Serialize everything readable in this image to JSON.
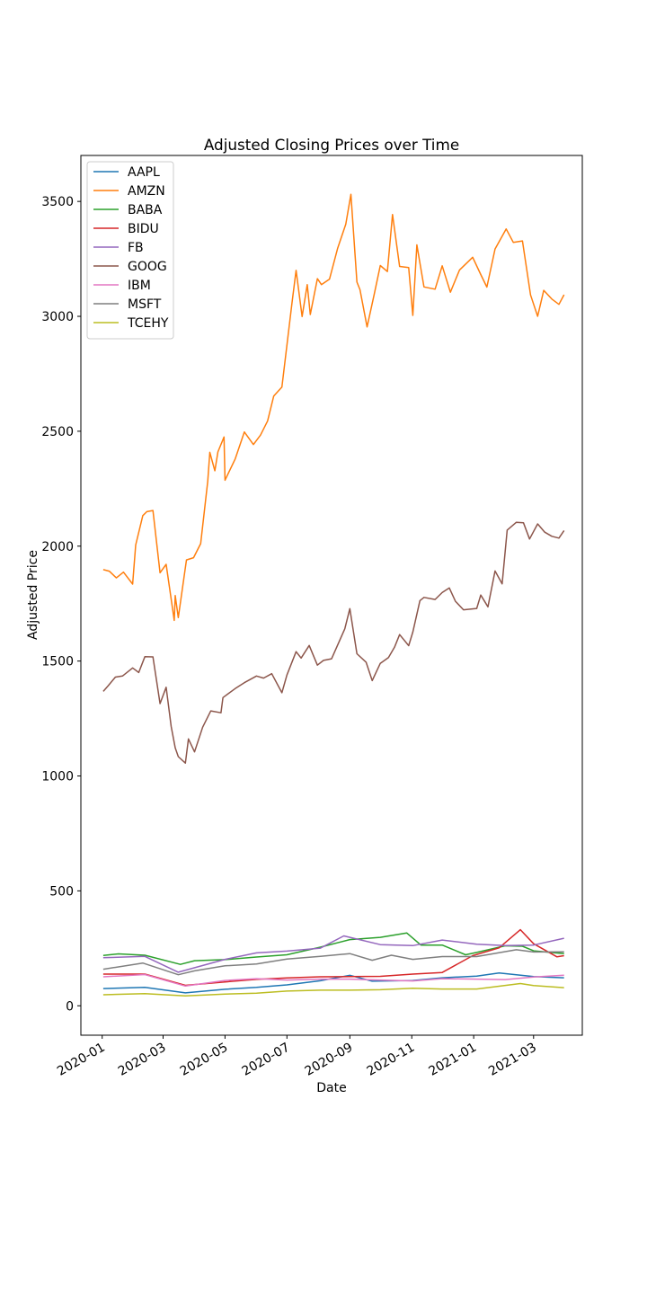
{
  "chart_data": {
    "type": "line",
    "title": "Adjusted Closing Prices over Time",
    "xlabel": "Date",
    "ylabel": "Adjusted Price",
    "x_ticks": [
      "2020-01",
      "2020-03",
      "2020-05",
      "2020-07",
      "2020-09",
      "2020-11",
      "2021-01",
      "2021-03"
    ],
    "y_ticks": [
      0,
      500,
      1000,
      1500,
      2000,
      2500,
      3000,
      3500
    ],
    "xlim": [
      "2019-12-11",
      "2021-04-18"
    ],
    "ylim": [
      -128,
      3700
    ],
    "grid": false,
    "legend_position": "top-left",
    "series": [
      {
        "name": "AAPL",
        "color": "#1f77b4",
        "points": [
          [
            "2020-01-02",
            75
          ],
          [
            "2020-02-12",
            80
          ],
          [
            "2020-03-23",
            56
          ],
          [
            "2020-05-01",
            72
          ],
          [
            "2020-06-01",
            80
          ],
          [
            "2020-07-01",
            91
          ],
          [
            "2020-08-03",
            109
          ],
          [
            "2020-09-01",
            133
          ],
          [
            "2020-09-23",
            107
          ],
          [
            "2020-11-02",
            110
          ],
          [
            "2020-12-01",
            122
          ],
          [
            "2021-01-04",
            129
          ],
          [
            "2021-01-26",
            143
          ],
          [
            "2021-03-01",
            127
          ],
          [
            "2021-03-31",
            122
          ]
        ]
      },
      {
        "name": "AMZN",
        "color": "#ff7f0e",
        "points": [
          [
            "2020-01-02",
            1898
          ],
          [
            "2020-01-08",
            1891
          ],
          [
            "2020-01-15",
            1862
          ],
          [
            "2020-01-22",
            1887
          ],
          [
            "2020-01-31",
            1835
          ],
          [
            "2020-02-03",
            2005
          ],
          [
            "2020-02-10",
            2133
          ],
          [
            "2020-02-14",
            2150
          ],
          [
            "2020-02-20",
            2155
          ],
          [
            "2020-02-27",
            1884
          ],
          [
            "2020-03-04",
            1921
          ],
          [
            "2020-03-12",
            1677
          ],
          [
            "2020-03-13",
            1785
          ],
          [
            "2020-03-16",
            1689
          ],
          [
            "2020-03-24",
            1940
          ],
          [
            "2020-03-31",
            1950
          ],
          [
            "2020-04-07",
            2011
          ],
          [
            "2020-04-14",
            2283
          ],
          [
            "2020-04-16",
            2408
          ],
          [
            "2020-04-21",
            2328
          ],
          [
            "2020-04-24",
            2410
          ],
          [
            "2020-04-30",
            2475
          ],
          [
            "2020-05-01",
            2287
          ],
          [
            "2020-05-11",
            2379
          ],
          [
            "2020-05-20",
            2497
          ],
          [
            "2020-05-29",
            2442
          ],
          [
            "2020-06-05",
            2483
          ],
          [
            "2020-06-12",
            2545
          ],
          [
            "2020-06-18",
            2653
          ],
          [
            "2020-06-26",
            2692
          ],
          [
            "2020-07-06",
            3057
          ],
          [
            "2020-07-10",
            3200
          ],
          [
            "2020-07-16",
            2999
          ],
          [
            "2020-07-21",
            3138
          ],
          [
            "2020-07-24",
            3008
          ],
          [
            "2020-07-31",
            3164
          ],
          [
            "2020-08-04",
            3138
          ],
          [
            "2020-08-12",
            3162
          ],
          [
            "2020-08-20",
            3297
          ],
          [
            "2020-08-28",
            3401
          ],
          [
            "2020-09-02",
            3531
          ],
          [
            "2020-09-08",
            3149
          ],
          [
            "2020-09-11",
            3116
          ],
          [
            "2020-09-18",
            2954
          ],
          [
            "2020-09-25",
            3095
          ],
          [
            "2020-10-01",
            3221
          ],
          [
            "2020-10-08",
            3195
          ],
          [
            "2020-10-13",
            3443
          ],
          [
            "2020-10-20",
            3217
          ],
          [
            "2020-10-29",
            3212
          ],
          [
            "2020-11-02",
            3004
          ],
          [
            "2020-11-06",
            3311
          ],
          [
            "2020-11-13",
            3128
          ],
          [
            "2020-11-24",
            3118
          ],
          [
            "2020-12-01",
            3220
          ],
          [
            "2020-12-09",
            3105
          ],
          [
            "2020-12-18",
            3201
          ],
          [
            "2020-12-31",
            3257
          ],
          [
            "2021-01-08",
            3182
          ],
          [
            "2021-01-14",
            3127
          ],
          [
            "2021-01-22",
            3293
          ],
          [
            "2021-02-02",
            3380
          ],
          [
            "2021-02-09",
            3322
          ],
          [
            "2021-02-18",
            3328
          ],
          [
            "2021-02-26",
            3093
          ],
          [
            "2021-03-05",
            3000
          ],
          [
            "2021-03-11",
            3113
          ],
          [
            "2021-03-19",
            3075
          ],
          [
            "2021-03-26",
            3052
          ],
          [
            "2021-03-31",
            3094
          ]
        ]
      },
      {
        "name": "BABA",
        "color": "#2ca02c",
        "points": [
          [
            "2020-01-02",
            219
          ],
          [
            "2020-01-17",
            226
          ],
          [
            "2020-02-12",
            220
          ],
          [
            "2020-03-18",
            180
          ],
          [
            "2020-04-01",
            196
          ],
          [
            "2020-05-01",
            201
          ],
          [
            "2020-06-01",
            212
          ],
          [
            "2020-07-01",
            222
          ],
          [
            "2020-08-03",
            255
          ],
          [
            "2020-09-01",
            288
          ],
          [
            "2020-10-01",
            298
          ],
          [
            "2020-10-27",
            317
          ],
          [
            "2020-11-10",
            264
          ],
          [
            "2020-12-01",
            264
          ],
          [
            "2020-12-24",
            222
          ],
          [
            "2021-01-04",
            232
          ],
          [
            "2021-02-01",
            261
          ],
          [
            "2021-02-18",
            259
          ],
          [
            "2021-03-01",
            239
          ],
          [
            "2021-03-31",
            227
          ]
        ]
      },
      {
        "name": "BIDU",
        "color": "#d62728",
        "points": [
          [
            "2020-01-02",
            138
          ],
          [
            "2020-02-12",
            138
          ],
          [
            "2020-03-23",
            89
          ],
          [
            "2020-05-01",
            104
          ],
          [
            "2020-06-01",
            115
          ],
          [
            "2020-07-01",
            121
          ],
          [
            "2020-08-03",
            126
          ],
          [
            "2020-09-01",
            127
          ],
          [
            "2020-10-01",
            128
          ],
          [
            "2020-11-02",
            138
          ],
          [
            "2020-12-01",
            145
          ],
          [
            "2020-12-31",
            218
          ],
          [
            "2021-01-26",
            252
          ],
          [
            "2021-02-16",
            331
          ],
          [
            "2021-03-01",
            270
          ],
          [
            "2021-03-24",
            213
          ],
          [
            "2021-03-31",
            218
          ]
        ]
      },
      {
        "name": "FB",
        "color": "#9467bd",
        "points": [
          [
            "2020-01-02",
            209
          ],
          [
            "2020-02-12",
            215
          ],
          [
            "2020-03-16",
            146
          ],
          [
            "2020-05-01",
            202
          ],
          [
            "2020-06-01",
            230
          ],
          [
            "2020-07-01",
            238
          ],
          [
            "2020-08-03",
            251
          ],
          [
            "2020-08-26",
            304
          ],
          [
            "2020-10-01",
            266
          ],
          [
            "2020-11-02",
            262
          ],
          [
            "2020-12-01",
            286
          ],
          [
            "2021-01-04",
            268
          ],
          [
            "2021-02-01",
            262
          ],
          [
            "2021-03-01",
            264
          ],
          [
            "2021-03-31",
            294
          ]
        ]
      },
      {
        "name": "GOOG",
        "color": "#8c564b",
        "points": [
          [
            "2020-01-02",
            1368
          ],
          [
            "2020-01-07",
            1393
          ],
          [
            "2020-01-14",
            1430
          ],
          [
            "2020-01-21",
            1435
          ],
          [
            "2020-01-31",
            1470
          ],
          [
            "2020-02-06",
            1450
          ],
          [
            "2020-02-12",
            1519
          ],
          [
            "2020-02-20",
            1518
          ],
          [
            "2020-02-27",
            1315
          ],
          [
            "2020-03-04",
            1386
          ],
          [
            "2020-03-09",
            1215
          ],
          [
            "2020-03-13",
            1122
          ],
          [
            "2020-03-16",
            1084
          ],
          [
            "2020-03-23",
            1056
          ],
          [
            "2020-03-26",
            1161
          ],
          [
            "2020-04-01",
            1105
          ],
          [
            "2020-04-09",
            1212
          ],
          [
            "2020-04-17",
            1283
          ],
          [
            "2020-04-27",
            1275
          ],
          [
            "2020-04-29",
            1341
          ],
          [
            "2020-05-11",
            1380
          ],
          [
            "2020-05-20",
            1406
          ],
          [
            "2020-06-01",
            1435
          ],
          [
            "2020-06-08",
            1426
          ],
          [
            "2020-06-16",
            1445
          ],
          [
            "2020-06-26",
            1362
          ],
          [
            "2020-07-01",
            1439
          ],
          [
            "2020-07-10",
            1541
          ],
          [
            "2020-07-15",
            1513
          ],
          [
            "2020-07-23",
            1568
          ],
          [
            "2020-07-31",
            1482
          ],
          [
            "2020-08-06",
            1503
          ],
          [
            "2020-08-14",
            1510
          ],
          [
            "2020-08-21",
            1580
          ],
          [
            "2020-08-27",
            1640
          ],
          [
            "2020-09-01",
            1728
          ],
          [
            "2020-09-08",
            1532
          ],
          [
            "2020-09-17",
            1495
          ],
          [
            "2020-09-23",
            1415
          ],
          [
            "2020-10-01",
            1490
          ],
          [
            "2020-10-09",
            1515
          ],
          [
            "2020-10-15",
            1560
          ],
          [
            "2020-10-20",
            1615
          ],
          [
            "2020-10-29",
            1567
          ],
          [
            "2020-11-02",
            1626
          ],
          [
            "2020-11-09",
            1763
          ],
          [
            "2020-11-13",
            1777
          ],
          [
            "2020-11-24",
            1768
          ],
          [
            "2020-12-01",
            1798
          ],
          [
            "2020-12-08",
            1818
          ],
          [
            "2020-12-14",
            1760
          ],
          [
            "2020-12-22",
            1723
          ],
          [
            "2021-01-04",
            1729
          ],
          [
            "2021-01-08",
            1787
          ],
          [
            "2021-01-15",
            1736
          ],
          [
            "2021-01-22",
            1892
          ],
          [
            "2021-01-29",
            1836
          ],
          [
            "2021-02-03",
            2070
          ],
          [
            "2021-02-12",
            2104
          ],
          [
            "2021-02-19",
            2102
          ],
          [
            "2021-02-25",
            2031
          ],
          [
            "2021-03-05",
            2097
          ],
          [
            "2021-03-12",
            2061
          ],
          [
            "2021-03-19",
            2043
          ],
          [
            "2021-03-26",
            2035
          ],
          [
            "2021-03-31",
            2068
          ]
        ]
      },
      {
        "name": "IBM",
        "color": "#e377c2",
        "points": [
          [
            "2020-01-02",
            126
          ],
          [
            "2020-02-12",
            136
          ],
          [
            "2020-03-23",
            86
          ],
          [
            "2020-05-01",
            110
          ],
          [
            "2020-06-01",
            118
          ],
          [
            "2020-07-01",
            112
          ],
          [
            "2020-08-03",
            116
          ],
          [
            "2020-09-01",
            116
          ],
          [
            "2020-10-01",
            112
          ],
          [
            "2020-11-02",
            108
          ],
          [
            "2020-12-01",
            118
          ],
          [
            "2021-01-04",
            116
          ],
          [
            "2021-02-01",
            114
          ],
          [
            "2021-03-01",
            125
          ],
          [
            "2021-03-31",
            133
          ]
        ]
      },
      {
        "name": "MSFT",
        "color": "#7f7f7f",
        "points": [
          [
            "2020-01-02",
            159
          ],
          [
            "2020-02-10",
            186
          ],
          [
            "2020-03-16",
            135
          ],
          [
            "2020-04-01",
            152
          ],
          [
            "2020-05-01",
            174
          ],
          [
            "2020-06-01",
            182
          ],
          [
            "2020-07-01",
            203
          ],
          [
            "2020-08-03",
            215
          ],
          [
            "2020-09-01",
            227
          ],
          [
            "2020-09-23",
            198
          ],
          [
            "2020-10-12",
            220
          ],
          [
            "2020-11-02",
            202
          ],
          [
            "2020-12-01",
            214
          ],
          [
            "2021-01-04",
            214
          ],
          [
            "2021-02-12",
            244
          ],
          [
            "2021-03-01",
            234
          ],
          [
            "2021-03-31",
            235
          ]
        ]
      },
      {
        "name": "TCEHY",
        "color": "#bcbd22",
        "points": [
          [
            "2020-01-02",
            48
          ],
          [
            "2020-02-12",
            53
          ],
          [
            "2020-03-23",
            43
          ],
          [
            "2020-05-01",
            51
          ],
          [
            "2020-06-01",
            55
          ],
          [
            "2020-07-01",
            64
          ],
          [
            "2020-08-03",
            68
          ],
          [
            "2020-09-01",
            68
          ],
          [
            "2020-10-01",
            70
          ],
          [
            "2020-11-02",
            76
          ],
          [
            "2020-12-01",
            73
          ],
          [
            "2021-01-04",
            73
          ],
          [
            "2021-02-16",
            97
          ],
          [
            "2021-03-01",
            88
          ],
          [
            "2021-03-31",
            79
          ]
        ]
      }
    ]
  }
}
